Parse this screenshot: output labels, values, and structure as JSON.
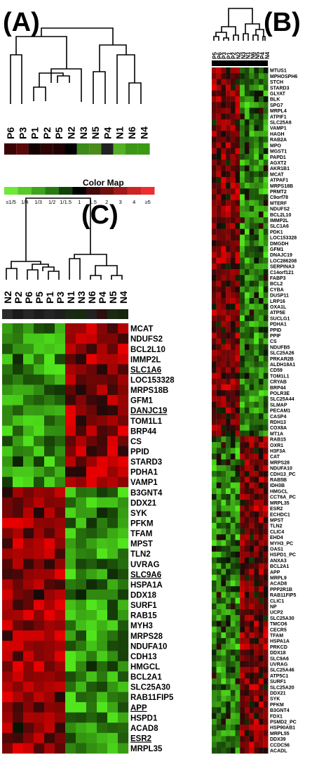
{
  "panels": {
    "a": {
      "label": "(A)",
      "samples": [
        "P6",
        "P3",
        "P1",
        "P2",
        "P5",
        "N2",
        "N3",
        "N5",
        "P4",
        "N1",
        "N6",
        "N4"
      ],
      "bar_colors": [
        "#3a0404",
        "#5a0808",
        "#140202",
        "#2c0404",
        "#200202",
        "#000000",
        "#3b8a1a",
        "#4c8a1c",
        "#222222",
        "#54b024",
        "#3e9616",
        "#3a9a14"
      ]
    },
    "colormap": {
      "title": "Color Map",
      "ticks": [
        "≤1/5",
        "1/4",
        "1/3",
        "1/2",
        "1/1.5",
        "1",
        "1.5",
        "2",
        "3",
        "4",
        "≥5"
      ],
      "colors": [
        "#70e838",
        "#58c82a",
        "#3ea41c",
        "#287a12",
        "#12420a",
        "#000000",
        "#420a0a",
        "#6e1010",
        "#a01818",
        "#cc2424",
        "#ee2e2e"
      ]
    },
    "b": {
      "label": "(B)",
      "samples": [
        "P5",
        "P6",
        "P3",
        "P1",
        "P2",
        "N2",
        "N3",
        "N1",
        "N6",
        "N5",
        "P4",
        "N4"
      ],
      "genes": [
        "MTUS1",
        "MPHOSPH6",
        "STCH",
        "STARD3",
        "GLYAT",
        "BLK",
        "SPG7",
        "MRPL4",
        "ATPIF1",
        "SLC25A6",
        "VAMP1",
        "HAGH",
        "RAB2A",
        "MPO",
        "MGST1",
        "PAPD1",
        "AGXT2",
        "AKR1B1",
        "MCAT",
        "ATPAF1",
        "MRPS18B",
        "PRMT2",
        "C9orf78",
        "MTERF",
        "NDUFS2",
        "BCL2L10",
        "IMMP2L",
        "SLC1A6",
        "PDK1",
        "LOC153328",
        "DMGDH",
        "GFM1",
        "DNAJC19",
        "LOC286208",
        "SERPINA3",
        "C14orf121",
        "FABP3",
        "BCL2",
        "CYBA",
        "DUSP11",
        "LRP16",
        "OXA1L",
        "ATP5E",
        "SUCLG1",
        "PDHA1",
        "PPID",
        "PPIF",
        "CS",
        "NDUFB5",
        "SLC25A26",
        "PRKAR2B",
        "ALDH18A1",
        "CD59",
        "TOM1L1",
        "CRYAB",
        "BRP44",
        "POLR3E",
        "SLC25A44",
        "SLMAP",
        "PECAM1",
        "CASP4",
        "RDH13",
        "COX8A",
        "MT1A",
        "RAB15",
        "OXR1",
        "H3F3A",
        "CAT",
        "MRPS28",
        "NDUFA10",
        "CDH13_PC",
        "RAB5B",
        "IDH3B",
        "HMGCL",
        "CCT6A_PC",
        "MRPL35",
        "ESR2",
        "ECHDC1",
        "MPST",
        "TLN2",
        "CLIC4",
        "EHD4",
        "MYH3_PC",
        "OAS1",
        "HSPD1_PC",
        "ANXA3",
        "BCL2A1",
        "APP",
        "MRPL9",
        "ACAD8",
        "PPP2R1B",
        "RAB11FIP5",
        "CLIC1",
        "NP",
        "UCP2",
        "SLC25A30",
        "TMCO6",
        "CECR5",
        "TFAM",
        "HSPA1A",
        "PRKCD",
        "DDX18",
        "SLC9A6",
        "UVRAG",
        "SLC25A46",
        "ATP5C1",
        "SURF1",
        "SLC25A20",
        "DDX21",
        "SYK",
        "PFKM",
        "B3GNT4",
        "FDX1",
        "PSMD2_PC",
        "HSP90AB1",
        "MRPL55",
        "DDX39",
        "CCDC56",
        "ACADL"
      ]
    },
    "c": {
      "label": "(C)",
      "samples": [
        "N2",
        "P2",
        "P6",
        "P5",
        "P1",
        "P3",
        "N1",
        "N3",
        "N6",
        "P4",
        "N5",
        "N4"
      ],
      "bar_colors": [
        "#2a2a2a",
        "#1a1a1a",
        "#262626",
        "#1c1c1c",
        "#242424",
        "#1e1e1e",
        "#1a2a14",
        "#182a10",
        "#222222",
        "#2c1010",
        "#1c2a14",
        "#18260e"
      ],
      "genes": [
        {
          "text": "MCAT",
          "underline": false
        },
        {
          "text": "NDUFS2",
          "underline": false
        },
        {
          "text": "BCL2L10",
          "underline": false
        },
        {
          "text": "IMMP2L",
          "underline": false
        },
        {
          "text": "SLC1A6",
          "underline": true
        },
        {
          "text": "LOC153328",
          "underline": false
        },
        {
          "text": "MRPS18B",
          "underline": false
        },
        {
          "text": "GFM1",
          "underline": false
        },
        {
          "text": "DANJC19",
          "underline": true
        },
        {
          "text": "TOM1L1",
          "underline": false
        },
        {
          "text": "BRP44",
          "underline": false
        },
        {
          "text": "CS",
          "underline": false
        },
        {
          "text": "PPID",
          "underline": false
        },
        {
          "text": "STARD3",
          "underline": false
        },
        {
          "text": "PDHA1",
          "underline": false
        },
        {
          "text": "VAMP1",
          "underline": false
        },
        {
          "text": "B3GNT4",
          "underline": false
        },
        {
          "text": "DDX21",
          "underline": false
        },
        {
          "text": "SYK",
          "underline": false
        },
        {
          "text": "PFKM",
          "underline": false
        },
        {
          "text": "TFAM",
          "underline": false
        },
        {
          "text": "MPST",
          "underline": false
        },
        {
          "text": "TLN2",
          "underline": false
        },
        {
          "text": "UVRAG",
          "underline": false
        },
        {
          "text": "SLC9A6",
          "underline": true
        },
        {
          "text": "HSPA1A",
          "underline": false
        },
        {
          "text": "DDX18",
          "underline": false
        },
        {
          "text": "SURF1",
          "underline": false
        },
        {
          "text": "RAB15",
          "underline": false
        },
        {
          "text": "MYH3",
          "underline": false
        },
        {
          "text": "MRPS28",
          "underline": false
        },
        {
          "text": "NDUFA10",
          "underline": false
        },
        {
          "text": "CDH13",
          "underline": false
        },
        {
          "text": "HMGCL",
          "underline": false
        },
        {
          "text": "BCL2A1",
          "underline": false
        },
        {
          "text": "SLC25A30",
          "underline": false
        },
        {
          "text": "RAB11FIP5",
          "underline": false
        },
        {
          "text": "APP",
          "underline": true
        },
        {
          "text": "HSPD1",
          "underline": false
        },
        {
          "text": "ACAD8",
          "underline": false
        },
        {
          "text": "ESR2",
          "underline": true
        },
        {
          "text": "MRPL35",
          "underline": false
        }
      ]
    }
  }
}
